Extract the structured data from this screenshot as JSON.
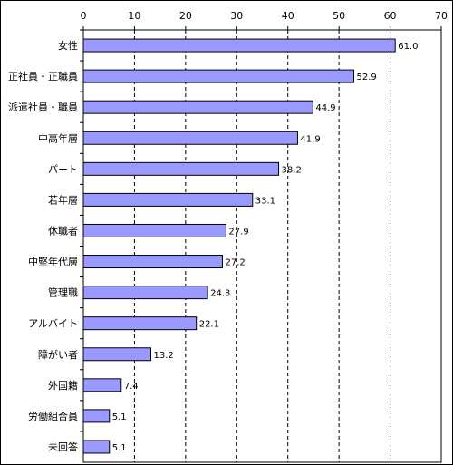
{
  "chart_data": {
    "type": "bar",
    "orientation": "horizontal",
    "categories": [
      "女性",
      "正社員・正職員",
      "派遣社員・職員",
      "中高年層",
      "パート",
      "若年層",
      "休職者",
      "中堅年代層",
      "管理職",
      "アルバイト",
      "障がい者",
      "外国籍",
      "労働組合員",
      "未回答"
    ],
    "values": [
      61.0,
      52.9,
      44.9,
      41.9,
      38.2,
      33.1,
      27.9,
      27.2,
      24.3,
      22.1,
      13.2,
      7.4,
      5.1,
      5.1
    ],
    "value_labels": [
      "61.0",
      "52.9",
      "44.9",
      "41.9",
      "38.2",
      "33.1",
      "27.9",
      "27.2",
      "24.3",
      "22.1",
      "13.2",
      "7.4",
      "5.1",
      "5.1"
    ],
    "x_ticks": [
      "0",
      "10",
      "20",
      "30",
      "40",
      "50",
      "60",
      "70"
    ],
    "xlim": [
      0,
      70
    ],
    "x_axis_position": "top",
    "grid": "vertical dashed",
    "bar_color": "#9999ff",
    "bar_edge_color": "#000000",
    "title": "",
    "xlabel": "",
    "ylabel": ""
  }
}
